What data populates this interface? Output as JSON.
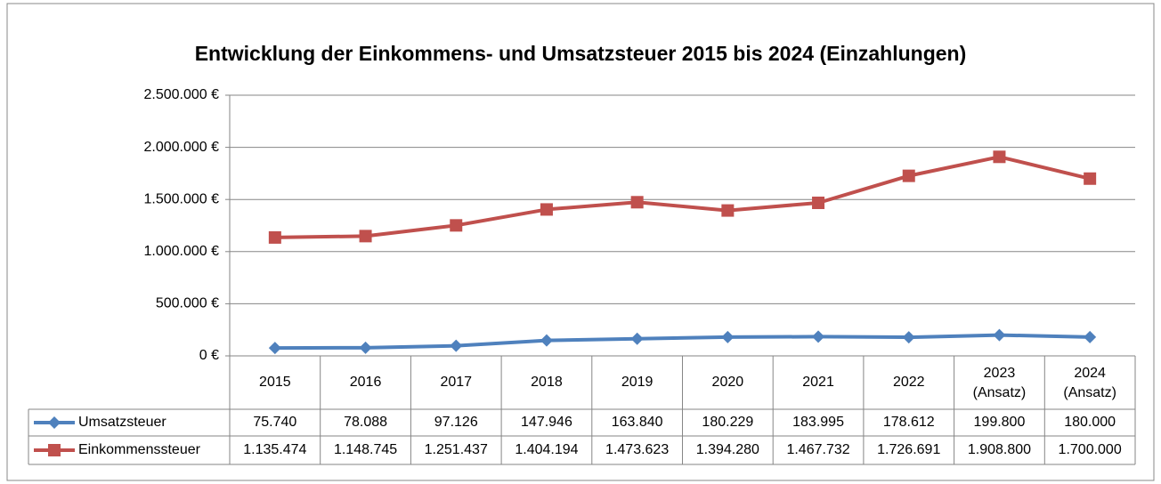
{
  "chart_data": {
    "type": "line",
    "title": "Entwicklung der Einkommens- und Umsatzsteuer 2015 bis 2024 (Einzahlungen)",
    "categories": [
      "2015",
      "2016",
      "2017",
      "2018",
      "2019",
      "2020",
      "2021",
      "2022",
      "2023 (Ansatz)",
      "2024 (Ansatz)"
    ],
    "series": [
      {
        "name": "Umsatzsteuer",
        "color": "#4f81bd",
        "marker": "diamond",
        "values": [
          75740,
          78088,
          97126,
          147946,
          163840,
          180229,
          183995,
          178612,
          199800,
          180000
        ],
        "value_labels": [
          "75.740",
          "78.088",
          "97.126",
          "147.946",
          "163.840",
          "180.229",
          "183.995",
          "178.612",
          "199.800",
          "180.000"
        ]
      },
      {
        "name": "Einkommenssteuer",
        "color": "#c0504d",
        "marker": "square",
        "values": [
          1135474,
          1148745,
          1251437,
          1404194,
          1473623,
          1394280,
          1467732,
          1726691,
          1908800,
          1700000
        ],
        "value_labels": [
          "1.135.474",
          "1.148.745",
          "1.251.437",
          "1.404.194",
          "1.473.623",
          "1.394.280",
          "1.467.732",
          "1.726.691",
          "1.908.800",
          "1.700.000"
        ]
      }
    ],
    "ylim": [
      0,
      2500000
    ],
    "yticks": [
      {
        "value": 0,
        "label": "0 €"
      },
      {
        "value": 500000,
        "label": "500.000 €"
      },
      {
        "value": 1000000,
        "label": "1.000.000 €"
      },
      {
        "value": 1500000,
        "label": "1.500.000 €"
      },
      {
        "value": 2000000,
        "label": "2.000.000 €"
      },
      {
        "value": 2500000,
        "label": "2.500.000 €"
      }
    ],
    "grid": true
  }
}
